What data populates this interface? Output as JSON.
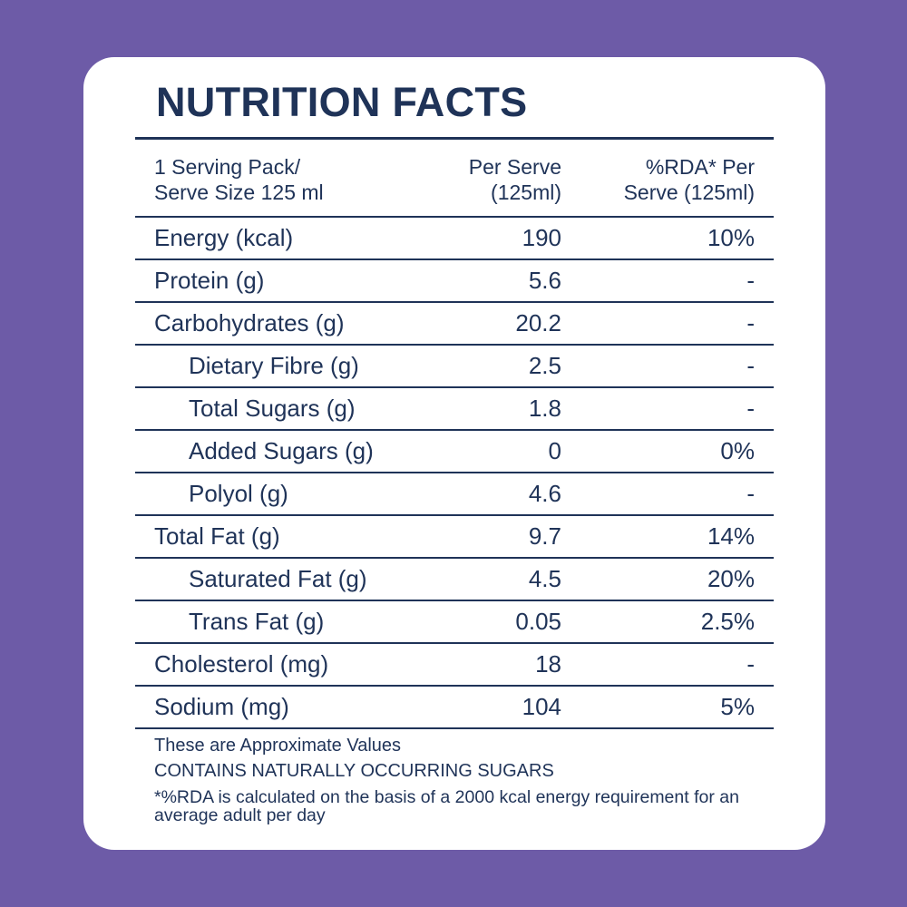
{
  "title": "NUTRITION FACTS",
  "header": {
    "col1": "1 Serving Pack/\nServe Size 125 ml",
    "col1_line1": "1 Serving Pack/",
    "col1_line2": "Serve Size 125 ml",
    "col2_line1": "Per Serve",
    "col2_line2": "(125ml)",
    "col3_line1": "%RDA* Per",
    "col3_line2": "Serve (125ml)"
  },
  "rows": [
    {
      "name": "Energy (kcal)",
      "value": "190",
      "rda": "10%"
    },
    {
      "name": "Protein (g)",
      "value": "5.6",
      "rda": "-"
    },
    {
      "name": "Carbohydrates (g)",
      "value": "20.2",
      "rda": "-"
    },
    {
      "name": "Dietary Fibre (g)",
      "value": "2.5",
      "rda": "-"
    },
    {
      "name": "Total Sugars (g)",
      "value": "1.8",
      "rda": "-"
    },
    {
      "name": "Added Sugars (g)",
      "value": "0",
      "rda": "0%"
    },
    {
      "name": "Polyol (g)",
      "value": "4.6",
      "rda": "-"
    },
    {
      "name": "Total Fat (g)",
      "value": "9.7",
      "rda": "14%"
    },
    {
      "name": "Saturated Fat (g)",
      "value": "4.5",
      "rda": "20%"
    },
    {
      "name": "Trans Fat (g)",
      "value": "0.05",
      "rda": "2.5%"
    },
    {
      "name": "Cholesterol (mg)",
      "value": "18",
      "rda": "-"
    },
    {
      "name": "Sodium (mg)",
      "value": "104",
      "rda": "5%"
    }
  ],
  "notes": {
    "approx": "These are Approximate Values",
    "sugars": "CONTAINS NATURALLY OCCURRING SUGARS",
    "rda": "*%RDA is calculated on the basis of a 2000 kcal energy requirement for an average adult per day"
  },
  "colors": {
    "background": "#6d5ba7",
    "card": "#ffffff",
    "text": "#1f3358"
  }
}
